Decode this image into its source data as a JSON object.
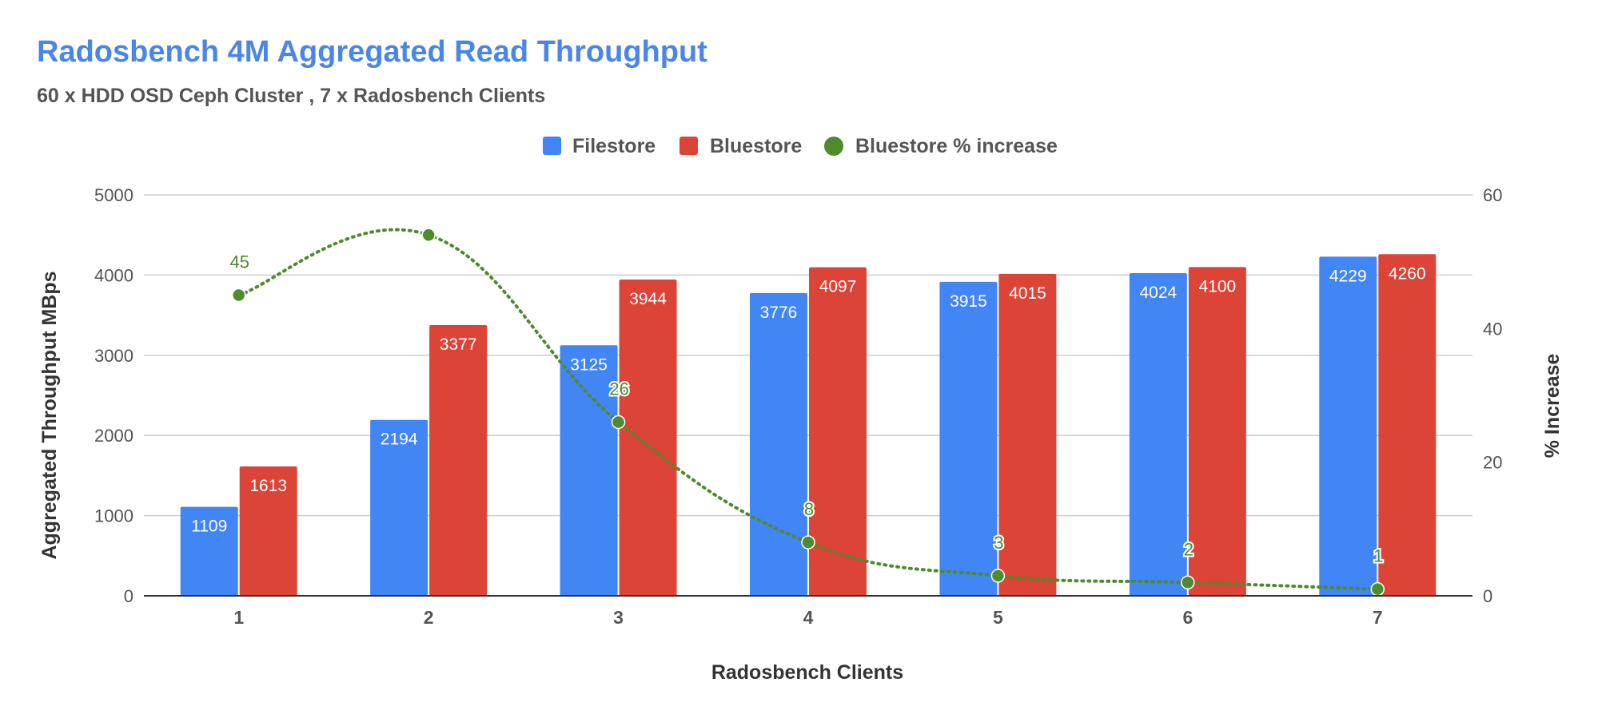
{
  "chart_data": {
    "type": "bar",
    "title": "Radosbench 4M Aggregated Read Throughput",
    "subtitle": "60 x HDD OSD Ceph Cluster , 7 x Radosbench Clients",
    "xlabel": "Radosbench Clients",
    "ylabel": "Aggregated Throughput MBps",
    "y2label": "% Increase",
    "categories": [
      "1",
      "2",
      "3",
      "4",
      "5",
      "6",
      "7"
    ],
    "ylim": [
      0,
      5000
    ],
    "yticks": [
      0,
      1000,
      2000,
      3000,
      4000,
      5000
    ],
    "y2lim": [
      0,
      60
    ],
    "y2ticks": [
      0,
      20,
      40,
      60
    ],
    "grid": true,
    "legend_position": "top-center",
    "series": [
      {
        "name": "Filestore",
        "type": "bar",
        "axis": "left",
        "color": "#4285f4",
        "values": [
          1109,
          2194,
          3125,
          3776,
          3915,
          4024,
          4229
        ]
      },
      {
        "name": "Bluestore",
        "type": "bar",
        "axis": "left",
        "color": "#db4437",
        "values": [
          1613,
          3377,
          3944,
          4097,
          4015,
          4100,
          4260
        ]
      },
      {
        "name": "Bluestore % increase",
        "type": "line",
        "style": "dotted",
        "axis": "right",
        "color": "#4e8a2e",
        "values": [
          45,
          54,
          26,
          8,
          3,
          2,
          1
        ],
        "labels": [
          "45",
          "",
          "26",
          "8",
          "3",
          "2",
          "1"
        ]
      }
    ]
  }
}
